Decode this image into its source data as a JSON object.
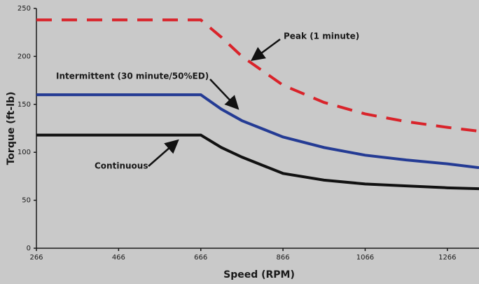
{
  "chart_data": {
    "type": "line",
    "xlabel": "Speed (RPM)",
    "ylabel": "Torque (ft-lb)",
    "x": [
      266,
      666,
      716,
      766,
      866,
      966,
      1066,
      1166,
      1266,
      1343
    ],
    "series": [
      {
        "name": "Peak (1 minute)",
        "color": "#d9232a",
        "dashed": true,
        "values": [
          238,
          238,
          220,
          200,
          170,
          152,
          140,
          132,
          126,
          122
        ]
      },
      {
        "name": "Intermittent (30 minute/50%ED)",
        "color": "#243b94",
        "dashed": false,
        "values": [
          160,
          160,
          145,
          133,
          116,
          105,
          97,
          92,
          88,
          84
        ]
      },
      {
        "name": "Continuous",
        "color": "#111111",
        "dashed": false,
        "values": [
          118,
          118,
          105,
          95,
          78,
          71,
          67,
          65,
          63,
          62
        ]
      }
    ],
    "xlim": [
      266,
      1343
    ],
    "ylim": [
      0,
      250
    ],
    "xticks": [
      266,
      466,
      666,
      866,
      1066,
      1266
    ],
    "yticks": [
      0,
      50,
      100,
      150,
      200,
      250
    ]
  }
}
